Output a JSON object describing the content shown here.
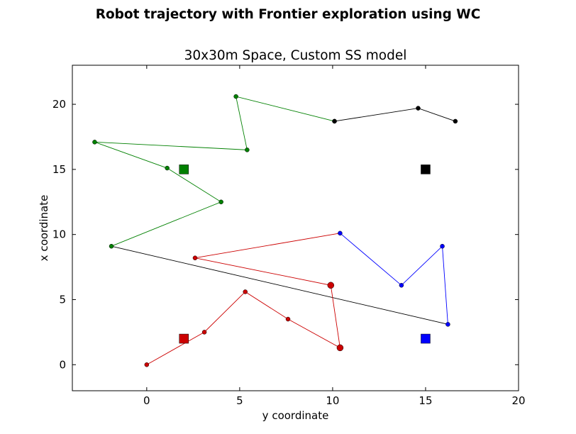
{
  "figure": {
    "suptitle": "Robot trajectory with Frontier exploration using WC"
  },
  "chart_data": {
    "type": "scatter",
    "title": "30x30m Space, Custom SS model",
    "xlabel": "y coordinate",
    "ylabel": "x coordinate",
    "xlim": [
      -4,
      20
    ],
    "ylim": [
      -2,
      23
    ],
    "xticks": [
      0,
      5,
      10,
      15,
      20
    ],
    "yticks": [
      0,
      5,
      10,
      15,
      20
    ],
    "grid": false,
    "series": [
      {
        "color": "#cc0000",
        "x": [
          0,
          3.1,
          5.3,
          7.6,
          10.4,
          9.9,
          2.6
        ],
        "y": [
          0,
          2.5,
          5.6,
          3.5,
          1.3,
          6.1,
          8.2
        ],
        "large_marker_index": [
          4,
          5
        ]
      },
      {
        "color": "#0000ff",
        "x": [
          10.4,
          13.7,
          15.9,
          16.2
        ],
        "y": [
          10.1,
          6.1,
          9.1,
          3.1
        ]
      },
      {
        "color": "#008000",
        "x": [
          -1.9,
          4.0,
          1.1,
          -2.8,
          5.4,
          4.8,
          10.1
        ],
        "y": [
          9.1,
          12.5,
          15.1,
          17.1,
          16.5,
          20.6,
          18.7
        ]
      },
      {
        "color": "#000000",
        "x": [
          10.1,
          14.6,
          16.6
        ],
        "y": [
          18.7,
          19.7,
          18.7
        ]
      }
    ],
    "connectors": [
      {
        "color": "#cc0000",
        "x": [
          2.6,
          10.4
        ],
        "y": [
          8.2,
          10.1
        ]
      },
      {
        "color": "#000000",
        "x": [
          16.2,
          -1.9
        ],
        "y": [
          3.1,
          9.1
        ]
      }
    ],
    "square_markers": [
      {
        "color": "#cc0000",
        "x": 2,
        "y": 2
      },
      {
        "color": "#0000ff",
        "x": 15,
        "y": 2
      },
      {
        "color": "#008000",
        "x": 2,
        "y": 15
      },
      {
        "color": "#000000",
        "x": 15,
        "y": 15
      }
    ]
  }
}
